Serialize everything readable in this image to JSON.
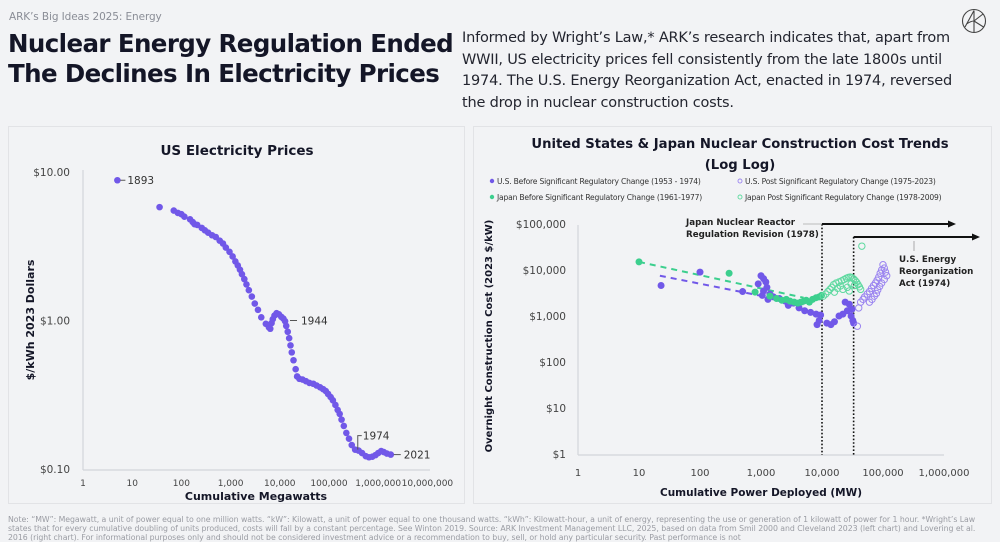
{
  "header": {
    "kicker": "ARK’s Big Ideas 2025: Energy",
    "title_line1": "Nuclear Energy Regulation Ended",
    "title_line2": "The Declines In Electricity Prices",
    "summary": "Informed by Wright’s Law,* ARK’s research indicates that, apart from WWII, US electricity prices fell consistently from the late 1800s until 1974. The U.S. Energy Reorganization Act, enacted in 1974, reversed the drop in nuclear construction costs.",
    "logo_icon": "ark-logo-icon"
  },
  "colors": {
    "us_purple": "#7158e8",
    "us_post_purple": "#9b85f0",
    "japan_green": "#3ccf8e",
    "japan_post_green": "#5fd9a0",
    "text_dark": "#141627",
    "axis_gray": "#d3d5da"
  },
  "chart_data": [
    {
      "type": "scatter",
      "title": "US Electricity Prices",
      "xlabel": "Cumulative Megawatts",
      "ylabel": "$/kWh 2023 Dollars",
      "xscale": "log",
      "yscale": "log",
      "xlim": [
        1,
        10000000
      ],
      "ylim": [
        0.1,
        10
      ],
      "x_ticks": [
        1,
        10,
        100,
        1000,
        10000,
        100000,
        1000000,
        10000000
      ],
      "x_tick_labels": [
        "1",
        "10",
        "100",
        "1,000",
        "10,000",
        "100,000",
        "1,000,000",
        "10,000,000"
      ],
      "y_ticks": [
        10,
        1,
        0.1
      ],
      "y_tick_labels": [
        "$10.00",
        "$1.00",
        "$0.10"
      ],
      "grid": false,
      "annotations": [
        {
          "label": "1893",
          "x": 5,
          "y": 8.8
        },
        {
          "label": "1944",
          "x": 14000,
          "y": 1.0
        },
        {
          "label": "1974",
          "x": 350000,
          "y": 0.135
        },
        {
          "label": "2021",
          "x": 1800000,
          "y": 0.125
        }
      ],
      "series": [
        {
          "name": "US Electricity Prices",
          "points": [
            [
              5,
              8.8
            ],
            [
              36,
              5.8
            ],
            [
              70,
              5.5
            ],
            [
              85,
              5.3
            ],
            [
              100,
              5.2
            ],
            [
              115,
              5.0
            ],
            [
              150,
              4.8
            ],
            [
              170,
              4.6
            ],
            [
              185,
              4.45
            ],
            [
              210,
              4.4
            ],
            [
              260,
              4.2
            ],
            [
              300,
              4.05
            ],
            [
              350,
              3.9
            ],
            [
              420,
              3.75
            ],
            [
              500,
              3.65
            ],
            [
              600,
              3.45
            ],
            [
              700,
              3.3
            ],
            [
              800,
              3.1
            ],
            [
              950,
              2.9
            ],
            [
              1100,
              2.7
            ],
            [
              1250,
              2.5
            ],
            [
              1400,
              2.35
            ],
            [
              1550,
              2.2
            ],
            [
              1700,
              2.05
            ],
            [
              1900,
              1.9
            ],
            [
              2100,
              1.75
            ],
            [
              2350,
              1.6
            ],
            [
              2700,
              1.45
            ],
            [
              3100,
              1.3
            ],
            [
              3600,
              1.18
            ],
            [
              4200,
              1.05
            ],
            [
              5200,
              0.95
            ],
            [
              6000,
              0.9
            ],
            [
              6400,
              0.88
            ],
            [
              6800,
              0.96
            ],
            [
              7200,
              1.02
            ],
            [
              7800,
              1.08
            ],
            [
              8600,
              1.12
            ],
            [
              9600,
              1.1
            ],
            [
              10700,
              1.06
            ],
            [
              11800,
              1.03
            ],
            [
              12800,
              0.99
            ],
            [
              13500,
              0.92
            ],
            [
              14500,
              0.84
            ],
            [
              15500,
              0.76
            ],
            [
              16500,
              0.68
            ],
            [
              17500,
              0.61
            ],
            [
              19000,
              0.54
            ],
            [
              21000,
              0.47
            ],
            [
              22500,
              0.42
            ],
            [
              25000,
              0.405
            ],
            [
              29000,
              0.4
            ],
            [
              34000,
              0.39
            ],
            [
              40000,
              0.38
            ],
            [
              48000,
              0.375
            ],
            [
              56000,
              0.365
            ],
            [
              66000,
              0.355
            ],
            [
              76000,
              0.345
            ],
            [
              86000,
              0.335
            ],
            [
              96000,
              0.32
            ],
            [
              108000,
              0.305
            ],
            [
              120000,
              0.29
            ],
            [
              135000,
              0.27
            ],
            [
              150000,
              0.25
            ],
            [
              165000,
              0.235
            ],
            [
              180000,
              0.215
            ],
            [
              200000,
              0.195
            ],
            [
              225000,
              0.175
            ],
            [
              255000,
              0.16
            ],
            [
              290000,
              0.145
            ],
            [
              340000,
              0.135
            ],
            [
              400000,
              0.133
            ],
            [
              470000,
              0.128
            ],
            [
              560000,
              0.122
            ],
            [
              650000,
              0.12
            ],
            [
              760000,
              0.121
            ],
            [
              880000,
              0.124
            ],
            [
              1000000,
              0.128
            ],
            [
              1150000,
              0.132
            ],
            [
              1300000,
              0.13
            ],
            [
              1500000,
              0.127
            ],
            [
              1800000,
              0.125
            ]
          ]
        }
      ]
    },
    {
      "type": "scatter",
      "title": "United States & Japan Nuclear Construction Cost Trends",
      "subtitle": "(Log Log)",
      "xlabel": "Cumulative Power Deployed (MW)",
      "ylabel": "Overnight Construction Cost (2023 $/kW)",
      "xscale": "log",
      "yscale": "log",
      "xlim": [
        1,
        1000000
      ],
      "ylim": [
        1,
        100000
      ],
      "x_ticks": [
        1,
        10,
        100,
        1000,
        10000,
        100000,
        1000000
      ],
      "x_tick_labels": [
        "1",
        "10",
        "100",
        "1,000",
        "10,000",
        "100,000",
        "1,000,000"
      ],
      "y_ticks": [
        100000,
        10000,
        1000,
        100,
        10,
        1
      ],
      "y_tick_labels": [
        "$100,000",
        "$10,000",
        "$1,000",
        "$100",
        "$10",
        "$1"
      ],
      "grid": false,
      "legend_position": "top",
      "legend": [
        {
          "label": "U.S. Before Significant Regulatory Change (1953 - 1974)",
          "style": "filled",
          "color_key": "us_purple"
        },
        {
          "label": "U.S. Post Significant Regulatory Change (1975-2023)",
          "style": "hollow",
          "color_key": "us_post_purple"
        },
        {
          "label": "Japan Before Significant Regulatory Change (1961-1977)",
          "style": "filled",
          "color_key": "japan_green"
        },
        {
          "label": "Japan Post Significant Regulatory Change (1978-2009)",
          "style": "hollow",
          "color_key": "japan_post_green"
        }
      ],
      "reference_lines": [
        {
          "label_line1": "Japan Nuclear Reactor",
          "label_line2": "Regulation Revision (1978)",
          "x": 10000
        },
        {
          "label_line1": "U.S. Energy",
          "label_line2": "Reorganization",
          "label_line3": "Act (1974)",
          "x": 33000
        }
      ],
      "trendlines": [
        {
          "name": "Japan trend (pre-regulation)",
          "from": [
            10,
            15000
          ],
          "to": [
            5000,
            2500
          ]
        },
        {
          "name": "US trend (pre-regulation)",
          "from": [
            22,
            7500
          ],
          "to": [
            5000,
            1800
          ]
        }
      ],
      "series": [
        {
          "name": "U.S. Before Significant Regulatory Change (1953 - 1974)",
          "style": "filled",
          "points": [
            [
              23,
              4600
            ],
            [
              100,
              9000
            ],
            [
              500,
              3400
            ],
            [
              900,
              5000
            ],
            [
              1000,
              7500
            ],
            [
              1100,
              6500
            ],
            [
              1200,
              5500
            ],
            [
              1250,
              4200
            ],
            [
              1100,
              3500
            ],
            [
              1400,
              3000
            ],
            [
              1600,
              2600
            ],
            [
              1050,
              2800
            ],
            [
              1300,
              2300
            ],
            [
              2000,
              2400
            ],
            [
              2500,
              2100
            ],
            [
              2800,
              1700
            ],
            [
              3400,
              1900
            ],
            [
              4200,
              1500
            ],
            [
              5200,
              1300
            ],
            [
              6500,
              1200
            ],
            [
              8000,
              1100
            ],
            [
              9500,
              1050
            ],
            [
              9000,
              800
            ],
            [
              8300,
              650
            ],
            [
              12000,
              700
            ],
            [
              14000,
              650
            ],
            [
              16000,
              750
            ],
            [
              19000,
              1000
            ],
            [
              22000,
              1100
            ],
            [
              26000,
              1300
            ],
            [
              28000,
              1800
            ],
            [
              24000,
              2000
            ],
            [
              30000,
              1000
            ],
            [
              31000,
              1400
            ],
            [
              32000,
              800
            ],
            [
              33000,
              700
            ]
          ]
        },
        {
          "name": "U.S. Post Significant Regulatory Change (1975-2023)",
          "style": "hollow",
          "points": [
            [
              38000,
              600
            ],
            [
              40000,
              1500
            ],
            [
              43000,
              2000
            ],
            [
              47000,
              2300
            ],
            [
              50000,
              2600
            ],
            [
              55000,
              3000
            ],
            [
              60000,
              3400
            ],
            [
              65000,
              4000
            ],
            [
              70000,
              4600
            ],
            [
              75000,
              5200
            ],
            [
              80000,
              6000
            ],
            [
              85000,
              7000
            ],
            [
              90000,
              8500
            ],
            [
              95000,
              10000
            ],
            [
              100000,
              13000
            ],
            [
              105000,
              11000
            ],
            [
              110000,
              9000
            ],
            [
              115000,
              7500
            ],
            [
              105000,
              6200
            ],
            [
              95000,
              5200
            ],
            [
              88000,
              4400
            ],
            [
              82000,
              3700
            ],
            [
              78000,
              3100
            ],
            [
              72000,
              2700
            ],
            [
              66000,
              2300
            ],
            [
              60000,
              2000
            ]
          ]
        },
        {
          "name": "Japan Before Significant Regulatory Change (1961-1977)",
          "style": "filled",
          "points": [
            [
              10,
              15000
            ],
            [
              300,
              8500
            ],
            [
              800,
              3300
            ],
            [
              1400,
              2700
            ],
            [
              1800,
              2400
            ],
            [
              2200,
              2200
            ],
            [
              2600,
              2300
            ],
            [
              3000,
              2100
            ],
            [
              3500,
              2000
            ],
            [
              4000,
              1900
            ],
            [
              4500,
              2000
            ],
            [
              5000,
              2100
            ],
            [
              5500,
              2200
            ],
            [
              6200,
              2000
            ],
            [
              7000,
              2300
            ],
            [
              8000,
              2500
            ],
            [
              9000,
              2600
            ],
            [
              9800,
              2800
            ]
          ]
        },
        {
          "name": "Japan Post Significant Regulatory Change (1978-2009)",
          "style": "hollow",
          "points": [
            [
              10500,
              2700
            ],
            [
              11500,
              3000
            ],
            [
              12500,
              3400
            ],
            [
              13500,
              3800
            ],
            [
              14500,
              4200
            ],
            [
              15500,
              4800
            ],
            [
              17000,
              5200
            ],
            [
              19000,
              5500
            ],
            [
              21000,
              5800
            ],
            [
              23000,
              6200
            ],
            [
              25000,
              6600
            ],
            [
              27000,
              6900
            ],
            [
              29000,
              7000
            ],
            [
              31000,
              6800
            ],
            [
              33000,
              6400
            ],
            [
              35000,
              5900
            ],
            [
              37000,
              5400
            ],
            [
              39000,
              4800
            ],
            [
              41000,
              4300
            ],
            [
              43000,
              3800
            ],
            [
              45000,
              33000
            ],
            [
              20000,
              4500
            ],
            [
              22000,
              3800
            ],
            [
              26000,
              4200
            ],
            [
              30000,
              5000
            ],
            [
              34000,
              4600
            ],
            [
              28000,
              3500
            ],
            [
              18000,
              4000
            ],
            [
              16000,
              3300
            ]
          ]
        }
      ]
    }
  ],
  "footnote": "Note: “MW”: Megawatt, a unit of power equal to one million watts. “kW”: Kilowatt, a unit of power equal to one thousand watts. “kWh”: Kilowatt-hour, a unit of energy, representing the use or generation of 1 kilowatt of power for 1 hour. *Wright’s Law states that for every cumulative doubling of units produced, costs will fall by a constant percentage. See Winton 2019. Source: ARK Investment Management LLC, 2025, based on data from Smil 2000 and Cleveland 2023 (left chart) and Lovering et al. 2016 (right chart). For informational purposes only and should not be considered investment advice or a recommendation to buy, sell, or hold any particular security. Past performance is not"
}
